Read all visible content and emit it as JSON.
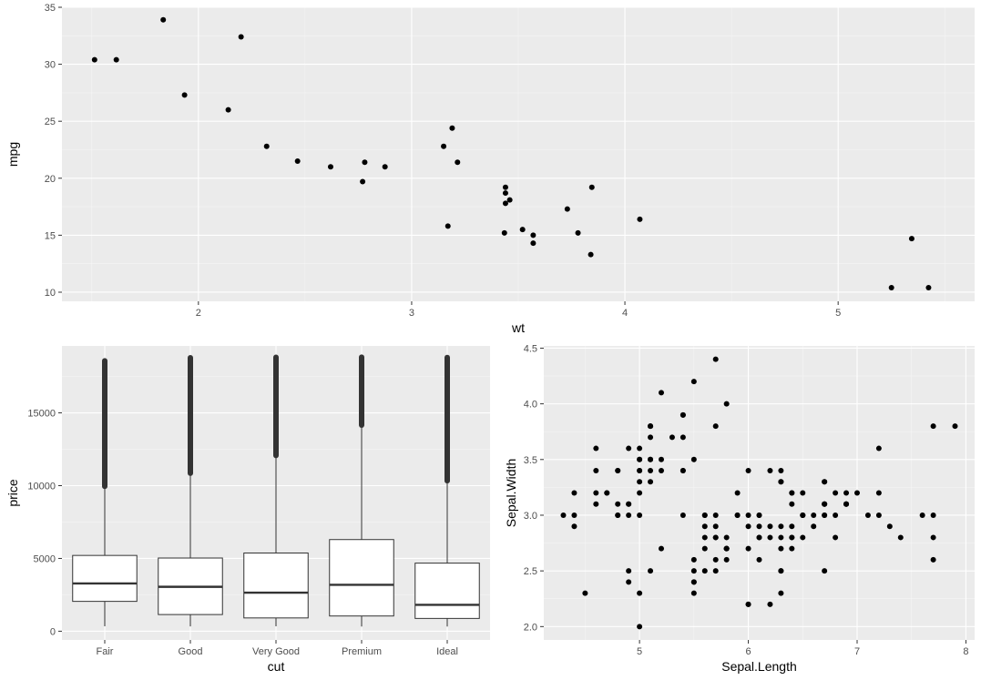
{
  "chart_data": [
    {
      "type": "scatter",
      "xlabel": "wt",
      "ylabel": "mpg",
      "xlim": [
        1.36,
        5.64
      ],
      "ylim": [
        9.2,
        35.0
      ],
      "xticks": [
        2,
        3,
        4,
        5
      ],
      "yticks": [
        10,
        15,
        20,
        25,
        30,
        35
      ],
      "grid": true,
      "points": [
        [
          2.62,
          21.0
        ],
        [
          2.875,
          21.0
        ],
        [
          2.32,
          22.8
        ],
        [
          3.215,
          21.4
        ],
        [
          3.44,
          18.7
        ],
        [
          3.46,
          18.1
        ],
        [
          3.57,
          14.3
        ],
        [
          3.19,
          24.4
        ],
        [
          3.15,
          22.8
        ],
        [
          3.44,
          19.2
        ],
        [
          3.44,
          17.8
        ],
        [
          4.07,
          16.4
        ],
        [
          3.73,
          17.3
        ],
        [
          3.78,
          15.2
        ],
        [
          5.25,
          10.4
        ],
        [
          5.424,
          10.4
        ],
        [
          5.345,
          14.7
        ],
        [
          2.2,
          32.4
        ],
        [
          1.615,
          30.4
        ],
        [
          1.835,
          33.9
        ],
        [
          2.465,
          21.5
        ],
        [
          3.52,
          15.5
        ],
        [
          3.435,
          15.2
        ],
        [
          3.84,
          13.3
        ],
        [
          3.845,
          19.2
        ],
        [
          1.935,
          27.3
        ],
        [
          2.14,
          26.0
        ],
        [
          1.513,
          30.4
        ],
        [
          3.17,
          15.8
        ],
        [
          2.77,
          19.7
        ],
        [
          3.57,
          15.0
        ],
        [
          2.78,
          21.4
        ]
      ]
    },
    {
      "type": "box",
      "xlabel": "cut",
      "ylabel": "price",
      "categories": [
        "Fair",
        "Good",
        "Very Good",
        "Premium",
        "Ideal"
      ],
      "ylim": [
        -600,
        19600
      ],
      "yticks": [
        0,
        5000,
        10000,
        15000
      ],
      "grid": true,
      "boxes": [
        {
          "min": 337,
          "q1": 2050,
          "median": 3282,
          "q3": 5206,
          "whisker_high": 9940,
          "outlier_low": 9950,
          "outlier_high": 18574
        },
        {
          "min": 327,
          "q1": 1145,
          "median": 3050,
          "q3": 5028,
          "whisker_high": 10840,
          "outlier_low": 10850,
          "outlier_high": 18788
        },
        {
          "min": 336,
          "q1": 912,
          "median": 2648,
          "q3": 5373,
          "whisker_high": 12060,
          "outlier_low": 12070,
          "outlier_high": 18818
        },
        {
          "min": 326,
          "q1": 1046,
          "median": 3185,
          "q3": 6296,
          "whisker_high": 14150,
          "outlier_low": 14160,
          "outlier_high": 18823
        },
        {
          "min": 326,
          "q1": 878,
          "median": 1810,
          "q3": 4678,
          "whisker_high": 10330,
          "outlier_low": 10340,
          "outlier_high": 18806
        }
      ]
    },
    {
      "type": "scatter",
      "xlabel": "Sepal.Length",
      "ylabel": "Sepal.Width",
      "xlim": [
        4.12,
        8.08
      ],
      "ylim": [
        1.88,
        4.52
      ],
      "xticks": [
        5,
        6,
        7,
        8
      ],
      "yticks": [
        2.0,
        2.5,
        3.0,
        3.5,
        4.0,
        4.5
      ],
      "ytick_labels": [
        "2.0",
        "2.5",
        "3.0",
        "3.5",
        "4.0",
        "4.5"
      ],
      "grid": true,
      "points": [
        [
          5.1,
          3.5
        ],
        [
          4.9,
          3.0
        ],
        [
          4.7,
          3.2
        ],
        [
          4.6,
          3.1
        ],
        [
          5.0,
          3.6
        ],
        [
          5.4,
          3.9
        ],
        [
          4.6,
          3.4
        ],
        [
          5.0,
          3.4
        ],
        [
          4.4,
          2.9
        ],
        [
          4.9,
          3.1
        ],
        [
          5.4,
          3.7
        ],
        [
          4.8,
          3.4
        ],
        [
          4.8,
          3.0
        ],
        [
          4.3,
          3.0
        ],
        [
          5.8,
          4.0
        ],
        [
          5.7,
          4.4
        ],
        [
          5.4,
          3.9
        ],
        [
          5.1,
          3.5
        ],
        [
          5.7,
          3.8
        ],
        [
          5.1,
          3.8
        ],
        [
          5.4,
          3.4
        ],
        [
          5.1,
          3.7
        ],
        [
          4.6,
          3.6
        ],
        [
          5.1,
          3.3
        ],
        [
          4.8,
          3.4
        ],
        [
          5.0,
          3.0
        ],
        [
          5.0,
          3.4
        ],
        [
          5.2,
          3.5
        ],
        [
          5.2,
          3.4
        ],
        [
          4.7,
          3.2
        ],
        [
          4.8,
          3.1
        ],
        [
          5.4,
          3.4
        ],
        [
          5.2,
          4.1
        ],
        [
          5.5,
          4.2
        ],
        [
          4.9,
          3.1
        ],
        [
          5.0,
          3.2
        ],
        [
          5.5,
          3.5
        ],
        [
          4.9,
          3.6
        ],
        [
          4.4,
          3.0
        ],
        [
          5.1,
          3.4
        ],
        [
          5.0,
          3.5
        ],
        [
          4.5,
          2.3
        ],
        [
          4.4,
          3.2
        ],
        [
          5.0,
          3.5
        ],
        [
          5.1,
          3.8
        ],
        [
          4.8,
          3.0
        ],
        [
          5.1,
          3.8
        ],
        [
          4.6,
          3.2
        ],
        [
          5.3,
          3.7
        ],
        [
          5.0,
          3.3
        ],
        [
          7.0,
          3.2
        ],
        [
          6.4,
          3.2
        ],
        [
          6.9,
          3.1
        ],
        [
          5.5,
          2.3
        ],
        [
          6.5,
          2.8
        ],
        [
          5.7,
          2.8
        ],
        [
          6.3,
          3.3
        ],
        [
          4.9,
          2.4
        ],
        [
          6.6,
          2.9
        ],
        [
          5.2,
          2.7
        ],
        [
          5.0,
          2.0
        ],
        [
          5.9,
          3.0
        ],
        [
          6.0,
          2.2
        ],
        [
          6.1,
          2.9
        ],
        [
          5.6,
          2.9
        ],
        [
          6.7,
          3.1
        ],
        [
          5.6,
          3.0
        ],
        [
          5.8,
          2.7
        ],
        [
          6.2,
          2.2
        ],
        [
          5.6,
          2.5
        ],
        [
          5.9,
          3.2
        ],
        [
          6.1,
          2.8
        ],
        [
          6.3,
          2.5
        ],
        [
          6.1,
          2.8
        ],
        [
          6.4,
          2.9
        ],
        [
          6.6,
          3.0
        ],
        [
          6.8,
          2.8
        ],
        [
          6.7,
          3.0
        ],
        [
          6.0,
          2.9
        ],
        [
          5.7,
          2.6
        ],
        [
          5.5,
          2.4
        ],
        [
          5.5,
          2.4
        ],
        [
          5.8,
          2.7
        ],
        [
          6.0,
          2.7
        ],
        [
          5.4,
          3.0
        ],
        [
          6.0,
          3.4
        ],
        [
          6.7,
          3.1
        ],
        [
          6.3,
          2.3
        ],
        [
          5.6,
          3.0
        ],
        [
          5.5,
          2.5
        ],
        [
          5.5,
          2.6
        ],
        [
          6.1,
          3.0
        ],
        [
          5.8,
          2.6
        ],
        [
          5.0,
          2.3
        ],
        [
          5.6,
          2.7
        ],
        [
          5.7,
          3.0
        ],
        [
          5.7,
          2.9
        ],
        [
          6.2,
          2.9
        ],
        [
          5.1,
          2.5
        ],
        [
          5.7,
          2.8
        ],
        [
          6.3,
          3.3
        ],
        [
          5.8,
          2.7
        ],
        [
          7.1,
          3.0
        ],
        [
          6.3,
          2.9
        ],
        [
          6.5,
          3.0
        ],
        [
          7.6,
          3.0
        ],
        [
          4.9,
          2.5
        ],
        [
          7.3,
          2.9
        ],
        [
          6.7,
          2.5
        ],
        [
          7.2,
          3.6
        ],
        [
          6.5,
          3.2
        ],
        [
          6.4,
          2.7
        ],
        [
          6.8,
          3.0
        ],
        [
          5.7,
          2.5
        ],
        [
          5.8,
          2.8
        ],
        [
          6.4,
          3.2
        ],
        [
          6.5,
          3.0
        ],
        [
          7.7,
          3.8
        ],
        [
          7.7,
          2.6
        ],
        [
          6.0,
          2.2
        ],
        [
          6.9,
          3.2
        ],
        [
          5.6,
          2.8
        ],
        [
          7.7,
          2.8
        ],
        [
          6.3,
          2.7
        ],
        [
          6.7,
          3.3
        ],
        [
          7.2,
          3.2
        ],
        [
          6.2,
          2.8
        ],
        [
          6.1,
          3.0
        ],
        [
          6.4,
          2.8
        ],
        [
          7.2,
          3.0
        ],
        [
          7.4,
          2.8
        ],
        [
          7.9,
          3.8
        ],
        [
          6.4,
          2.8
        ],
        [
          6.3,
          2.8
        ],
        [
          6.1,
          2.6
        ],
        [
          7.7,
          3.0
        ],
        [
          6.3,
          3.4
        ],
        [
          6.4,
          3.1
        ],
        [
          6.0,
          3.0
        ],
        [
          6.9,
          3.1
        ],
        [
          6.7,
          3.1
        ],
        [
          6.9,
          3.1
        ],
        [
          5.8,
          2.7
        ],
        [
          6.8,
          3.2
        ],
        [
          6.7,
          3.3
        ],
        [
          6.7,
          3.0
        ],
        [
          6.3,
          2.5
        ],
        [
          6.5,
          3.0
        ],
        [
          6.2,
          3.4
        ],
        [
          5.9,
          3.0
        ]
      ]
    }
  ]
}
